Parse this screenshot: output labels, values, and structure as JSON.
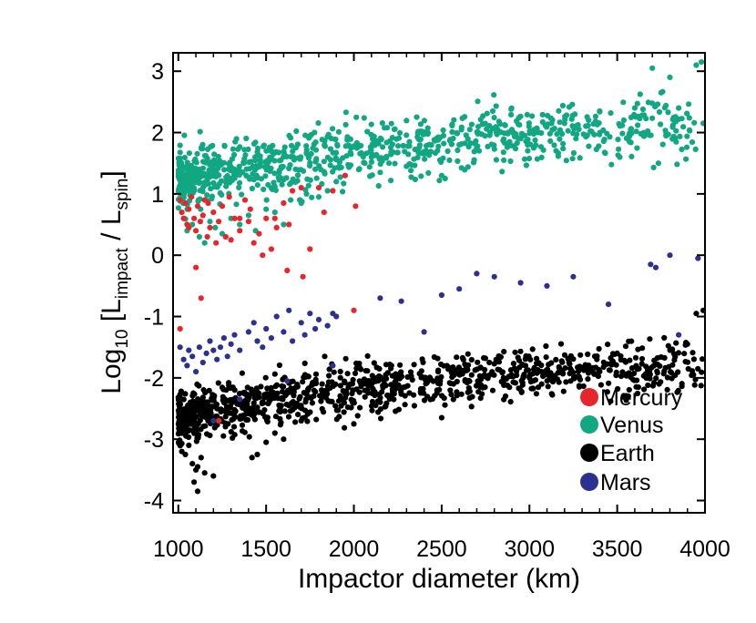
{
  "chart_data": {
    "type": "scatter",
    "xlabel": "Impactor diameter (km)",
    "ylabel": {
      "prefix": "Log",
      "prefix_sub": "10",
      "open": " [L",
      "num_sub": "impact",
      "mid": " / L",
      "den_sub": "spin",
      "close": "]"
    },
    "xlim": [
      970,
      4000
    ],
    "ylim": [
      -4.2,
      3.3
    ],
    "xticks": [
      1000,
      1500,
      2000,
      2500,
      3000,
      3500,
      4000
    ],
    "yticks": [
      -4,
      -3,
      -2,
      -1,
      0,
      1,
      2,
      3
    ],
    "grid": false,
    "legend_position": "bottom-right",
    "series": [
      {
        "name": "Mercury",
        "color": "#e8252b",
        "points": [
          [
            1010,
            0.9
          ],
          [
            1020,
            0.7
          ],
          [
            1030,
            0.6
          ],
          [
            1040,
            0.85
          ],
          [
            1050,
            0.5
          ],
          [
            1060,
            0.75
          ],
          [
            1075,
            0.95
          ],
          [
            1090,
            0.6
          ],
          [
            1100,
            0.4
          ],
          [
            1110,
            0.8
          ],
          [
            1125,
            0.55
          ],
          [
            1140,
            0.65
          ],
          [
            1150,
            0.9
          ],
          [
            1165,
            0.3
          ],
          [
            1180,
            0.45
          ],
          [
            1200,
            0.7
          ],
          [
            1215,
            0.2
          ],
          [
            1230,
            0.55
          ],
          [
            1250,
            0.8
          ],
          [
            1270,
            0.3
          ],
          [
            1290,
            0.95
          ],
          [
            1300,
            0.25
          ],
          [
            1320,
            0.6
          ],
          [
            1350,
            0.4
          ],
          [
            1380,
            0.9
          ],
          [
            1400,
            0.55
          ],
          [
            1430,
            0.2
          ],
          [
            1460,
            0.35
          ],
          [
            1500,
            0.6
          ],
          [
            1530,
            0.1
          ],
          [
            1560,
            0.45
          ],
          [
            1600,
            0.85
          ],
          [
            1630,
            0.5
          ],
          [
            1650,
            1.05
          ],
          [
            1700,
            1.1
          ],
          [
            1750,
            0.1
          ],
          [
            1800,
            1.1
          ],
          [
            1830,
            0.7
          ],
          [
            1880,
            1.05
          ],
          [
            1950,
            1.3
          ],
          [
            2010,
            0.8
          ],
          [
            1620,
            -0.25
          ],
          [
            1710,
            -0.35
          ],
          [
            1480,
            0.0
          ],
          [
            1100,
            -0.2
          ],
          [
            1130,
            -0.7
          ],
          [
            1010,
            -1.2
          ],
          [
            2000,
            -0.9
          ],
          [
            1230,
            -2.7
          ],
          [
            1060,
            0.45
          ],
          [
            1170,
            0.85
          ],
          [
            1350,
            0.6
          ],
          [
            1410,
            0.75
          ],
          [
            1550,
            0.6
          ]
        ]
      },
      {
        "name": "Venus",
        "color": "#12a783",
        "band": {
          "x_from": 1000,
          "x_to": 3950,
          "y_start": 1.2,
          "y_slope": 0.00058,
          "spread": 0.55,
          "count": 900,
          "seed": 17
        },
        "points": [
          [
            1050,
            0.4
          ],
          [
            1080,
            0.5
          ],
          [
            1120,
            0.3
          ],
          [
            1150,
            0.2
          ],
          [
            1180,
            0.55
          ],
          [
            1210,
            0.45
          ],
          [
            1250,
            0.35
          ],
          [
            1300,
            0.6
          ],
          [
            1350,
            0.5
          ],
          [
            1400,
            0.65
          ],
          [
            1440,
            0.4
          ],
          [
            1500,
            0.75
          ],
          [
            1550,
            0.7
          ],
          [
            1600,
            0.5
          ],
          [
            1640,
            0.9
          ],
          [
            1700,
            0.85
          ],
          [
            1730,
            1.0
          ],
          [
            1800,
            0.95
          ],
          [
            1850,
            1.05
          ],
          [
            1900,
            1.2
          ],
          [
            2100,
            1.6
          ],
          [
            2150,
            1.35
          ],
          [
            2200,
            1.5
          ],
          [
            2300,
            1.45
          ],
          [
            2400,
            1.65
          ],
          [
            2500,
            1.3
          ],
          [
            2520,
            1.25
          ],
          [
            2600,
            1.8
          ],
          [
            2700,
            1.75
          ],
          [
            2900,
            2.05
          ],
          [
            3050,
            2.0
          ],
          [
            3200,
            2.15
          ],
          [
            3400,
            2.35
          ],
          [
            3600,
            2.4
          ],
          [
            3990,
            2.15
          ],
          [
            3980,
            3.15
          ],
          [
            3950,
            3.1
          ],
          [
            3800,
            2.9
          ],
          [
            3750,
            2.65
          ],
          [
            3700,
            3.05
          ],
          [
            3850,
            2.4
          ]
        ]
      },
      {
        "name": "Earth",
        "color": "#000000",
        "band": {
          "x_from": 1000,
          "x_to": 3990,
          "y_start": -2.65,
          "y_slope": 0.00056,
          "spread": 0.45,
          "count": 1100,
          "seed": 29
        },
        "points": [
          [
            1020,
            -3.2
          ],
          [
            1040,
            -3.25
          ],
          [
            1060,
            -3.1
          ],
          [
            1080,
            -3.4
          ],
          [
            1100,
            -3.5
          ],
          [
            1130,
            -3.3
          ],
          [
            1150,
            -3.55
          ],
          [
            1200,
            -3.6
          ],
          [
            1090,
            -3.7
          ],
          [
            1110,
            -3.45
          ],
          [
            1110,
            -3.85
          ],
          [
            1420,
            -3.3
          ],
          [
            1450,
            -3.25
          ],
          [
            1500,
            -3.05
          ],
          [
            1600,
            -3.0
          ],
          [
            1700,
            -2.7
          ],
          [
            2000,
            -2.75
          ],
          [
            2500,
            -2.65
          ],
          [
            3000,
            -2.0
          ],
          [
            3500,
            -1.6
          ],
          [
            3950,
            -0.95
          ],
          [
            3990,
            -0.9
          ],
          [
            3900,
            -1.45
          ],
          [
            1550,
            -2.9
          ]
        ]
      },
      {
        "name": "Mars",
        "color": "#2b3190",
        "points": [
          [
            1010,
            -1.5
          ],
          [
            1030,
            -1.7
          ],
          [
            1050,
            -1.8
          ],
          [
            1060,
            -1.55
          ],
          [
            1080,
            -1.65
          ],
          [
            1100,
            -1.9
          ],
          [
            1120,
            -1.5
          ],
          [
            1140,
            -1.75
          ],
          [
            1160,
            -1.6
          ],
          [
            1180,
            -1.4
          ],
          [
            1200,
            -1.55
          ],
          [
            1220,
            -1.7
          ],
          [
            1240,
            -1.5
          ],
          [
            1260,
            -1.35
          ],
          [
            1280,
            -1.65
          ],
          [
            1300,
            -1.45
          ],
          [
            1320,
            -1.3
          ],
          [
            1350,
            -1.55
          ],
          [
            1400,
            -1.25
          ],
          [
            1430,
            -1.1
          ],
          [
            1450,
            -1.4
          ],
          [
            1480,
            -1.5
          ],
          [
            1500,
            -1.2
          ],
          [
            1530,
            -1.35
          ],
          [
            1560,
            -1.0
          ],
          [
            1600,
            -1.25
          ],
          [
            1630,
            -0.9
          ],
          [
            1650,
            -1.4
          ],
          [
            1700,
            -1.1
          ],
          [
            1720,
            -1.3
          ],
          [
            1750,
            -0.95
          ],
          [
            1780,
            -1.2
          ],
          [
            1800,
            -1.05
          ],
          [
            1850,
            -1.15
          ],
          [
            1880,
            -0.95
          ],
          [
            1900,
            -1.0
          ],
          [
            2150,
            -0.7
          ],
          [
            2270,
            -0.75
          ],
          [
            2400,
            -1.25
          ],
          [
            2500,
            -0.65
          ],
          [
            2600,
            -0.55
          ],
          [
            2700,
            -0.3
          ],
          [
            2800,
            -0.35
          ],
          [
            2950,
            -0.45
          ],
          [
            3100,
            -0.5
          ],
          [
            3250,
            -0.35
          ],
          [
            3450,
            -0.8
          ],
          [
            3690,
            -0.15
          ],
          [
            3720,
            -0.2
          ],
          [
            3800,
            0.0
          ],
          [
            3960,
            -0.05
          ],
          [
            1200,
            -2.7
          ],
          [
            1350,
            -2.35
          ],
          [
            1620,
            -2.05
          ],
          [
            1880,
            -1.8
          ],
          [
            3850,
            -1.3
          ]
        ]
      }
    ]
  }
}
